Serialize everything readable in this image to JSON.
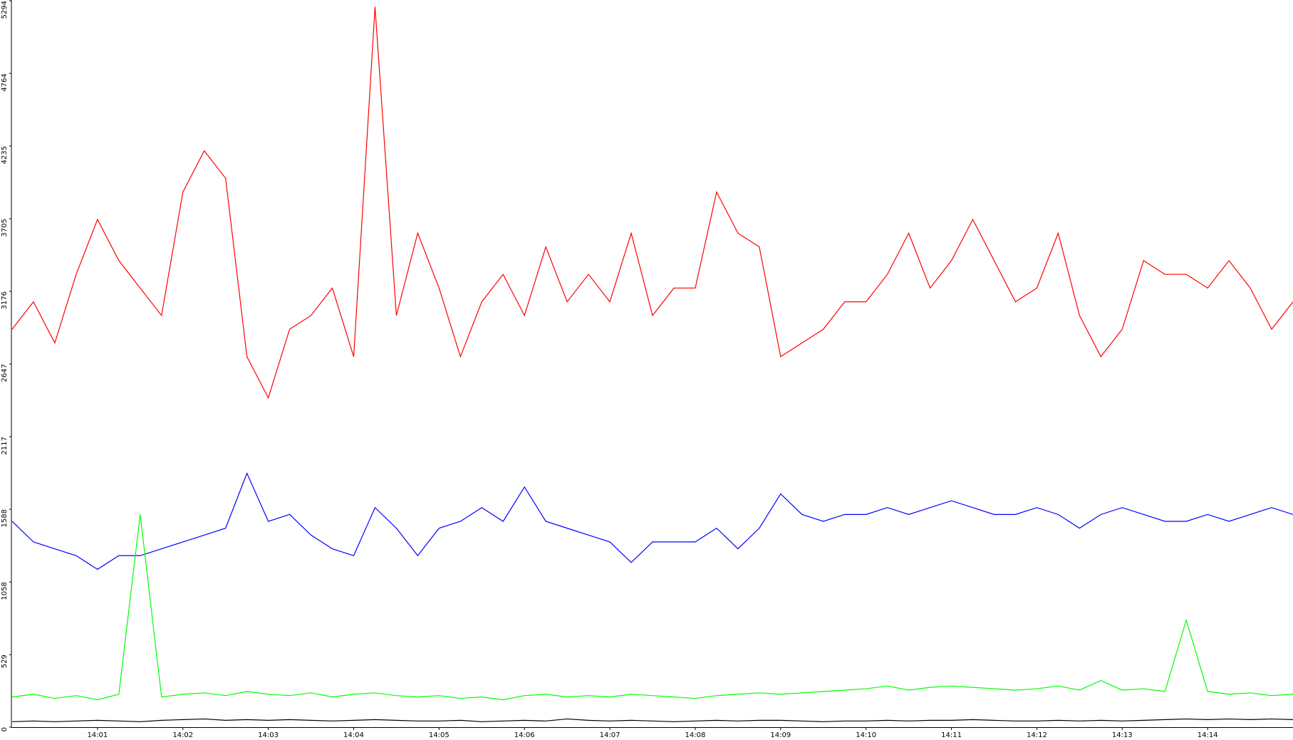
{
  "chart_data": {
    "type": "line",
    "x": [
      840,
      840.25,
      840.5,
      840.75,
      841,
      841.25,
      841.5,
      841.75,
      842,
      842.25,
      842.5,
      842.75,
      843,
      843.25,
      843.5,
      843.75,
      844,
      844.25,
      844.5,
      844.75,
      845,
      845.25,
      845.5,
      845.75,
      846,
      846.25,
      846.5,
      846.75,
      847,
      847.25,
      847.5,
      847.75,
      848,
      848.25,
      848.5,
      848.75,
      849,
      849.25,
      849.5,
      849.75,
      850,
      850.25,
      850.5,
      850.75,
      851,
      851.25,
      851.5,
      851.75,
      852,
      852.25,
      852.5,
      852.75,
      853,
      853.25,
      853.5,
      853.75,
      854,
      854.25,
      854.5,
      854.75,
      855
    ],
    "xlim": [
      840,
      855
    ],
    "xticks": [
      {
        "value": 841,
        "label": "14:01"
      },
      {
        "value": 842,
        "label": "14:02"
      },
      {
        "value": 843,
        "label": "14:03"
      },
      {
        "value": 844,
        "label": "14:04"
      },
      {
        "value": 845,
        "label": "14:05"
      },
      {
        "value": 846,
        "label": "14:06"
      },
      {
        "value": 847,
        "label": "14:07"
      },
      {
        "value": 848,
        "label": "14:08"
      },
      {
        "value": 849,
        "label": "14:09"
      },
      {
        "value": 850,
        "label": "14:10"
      },
      {
        "value": 851,
        "label": "14:11"
      },
      {
        "value": 852,
        "label": "14:12"
      },
      {
        "value": 853,
        "label": "14:13"
      },
      {
        "value": 854,
        "label": "14:14"
      }
    ],
    "ylim": [
      0,
      5294
    ],
    "yticks": [
      0,
      529,
      1058,
      1588,
      2117,
      2647,
      3176,
      3705,
      4235,
      4764,
      5294
    ],
    "series": [
      {
        "color": "#ff0000",
        "values": [
          2900,
          3100,
          2800,
          3300,
          3700,
          3400,
          3200,
          3000,
          3900,
          4200,
          4000,
          2700,
          2400,
          2900,
          3000,
          3200,
          2700,
          5250,
          3000,
          3600,
          3200,
          2700,
          3100,
          3300,
          3000,
          3500,
          3100,
          3300,
          3100,
          3600,
          3000,
          3200,
          3200,
          3900,
          3600,
          3500,
          2700,
          2800,
          2900,
          3100,
          3100,
          3300,
          3600,
          3200,
          3400,
          3700,
          3400,
          3100,
          3200,
          3600,
          3000,
          2700,
          2900,
          3400,
          3300,
          3300,
          3200,
          3400,
          3200,
          2900,
          3100
        ]
      },
      {
        "color": "#0000ff",
        "values": [
          1500,
          1350,
          1300,
          1250,
          1150,
          1250,
          1250,
          1300,
          1350,
          1400,
          1450,
          1850,
          1500,
          1550,
          1400,
          1300,
          1250,
          1600,
          1450,
          1250,
          1450,
          1500,
          1600,
          1500,
          1750,
          1500,
          1450,
          1400,
          1350,
          1200,
          1350,
          1350,
          1350,
          1450,
          1300,
          1450,
          1700,
          1550,
          1500,
          1550,
          1550,
          1600,
          1550,
          1600,
          1650,
          1600,
          1550,
          1550,
          1600,
          1550,
          1450,
          1550,
          1600,
          1550,
          1500,
          1500,
          1550,
          1500,
          1550,
          1600,
          1550
        ]
      },
      {
        "color": "#00ff00",
        "values": [
          220,
          240,
          210,
          230,
          200,
          240,
          1550,
          220,
          240,
          250,
          230,
          260,
          240,
          230,
          250,
          220,
          240,
          250,
          230,
          220,
          230,
          210,
          220,
          200,
          230,
          240,
          220,
          230,
          220,
          240,
          230,
          220,
          210,
          230,
          240,
          250,
          240,
          250,
          260,
          270,
          280,
          300,
          270,
          290,
          300,
          290,
          280,
          270,
          280,
          300,
          270,
          340,
          270,
          280,
          260,
          780,
          260,
          240,
          250,
          230,
          240
        ]
      },
      {
        "color": "#000000",
        "values": [
          40,
          45,
          40,
          45,
          50,
          45,
          40,
          50,
          55,
          60,
          50,
          55,
          50,
          55,
          50,
          45,
          50,
          55,
          50,
          45,
          45,
          50,
          40,
          45,
          50,
          45,
          60,
          50,
          45,
          50,
          45,
          40,
          45,
          50,
          45,
          50,
          50,
          45,
          40,
          45,
          45,
          50,
          45,
          50,
          50,
          55,
          50,
          45,
          45,
          50,
          45,
          50,
          45,
          50,
          55,
          60,
          55,
          60,
          55,
          60,
          55
        ]
      }
    ]
  }
}
